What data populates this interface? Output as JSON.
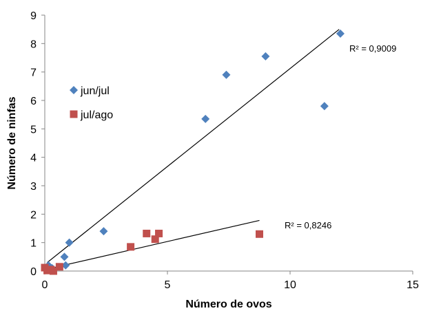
{
  "chart_data": {
    "type": "scatter",
    "title": "",
    "xlabel": "Número de ovos",
    "ylabel": "Número de ninfas",
    "xlim": [
      0,
      15
    ],
    "ylim": [
      0,
      9
    ],
    "xticks": [
      "0",
      "5",
      "10",
      "15"
    ],
    "yticks": [
      "0",
      "1",
      "2",
      "3",
      "4",
      "5",
      "6",
      "7",
      "8",
      "9"
    ],
    "grid": false,
    "legend_position": "left",
    "series": [
      {
        "name": "jun/jul",
        "marker": "diamond",
        "color": "#4F81BD",
        "points": [
          {
            "x": 0.05,
            "y": 0.05
          },
          {
            "x": 0.15,
            "y": 0.2
          },
          {
            "x": 0.3,
            "y": 0.1
          },
          {
            "x": 0.8,
            "y": 0.5
          },
          {
            "x": 0.85,
            "y": 0.2
          },
          {
            "x": 1.0,
            "y": 1.0
          },
          {
            "x": 2.4,
            "y": 1.4
          },
          {
            "x": 6.55,
            "y": 5.35
          },
          {
            "x": 7.4,
            "y": 6.9
          },
          {
            "x": 9.0,
            "y": 7.55
          },
          {
            "x": 11.4,
            "y": 5.8
          },
          {
            "x": 12.05,
            "y": 8.35
          }
        ],
        "trendline": {
          "x": [
            0.1,
            12.0
          ],
          "y": [
            0.3,
            8.5
          ]
        },
        "r2_label": "R² = 0,9009"
      },
      {
        "name": "jul/ago",
        "marker": "square",
        "color": "#C0504D",
        "points": [
          {
            "x": 0.0,
            "y": 0.12
          },
          {
            "x": 0.1,
            "y": 0.02
          },
          {
            "x": 0.25,
            "y": 0.05
          },
          {
            "x": 0.35,
            "y": 0.0
          },
          {
            "x": 0.6,
            "y": 0.15
          },
          {
            "x": 3.5,
            "y": 0.85
          },
          {
            "x": 4.15,
            "y": 1.32
          },
          {
            "x": 4.5,
            "y": 1.12
          },
          {
            "x": 4.65,
            "y": 1.32
          },
          {
            "x": 8.75,
            "y": 1.3
          }
        ],
        "trendline": {
          "x": [
            0.0,
            8.75
          ],
          "y": [
            0.05,
            1.78
          ]
        },
        "r2_label": "R² = 0,8246"
      }
    ]
  }
}
